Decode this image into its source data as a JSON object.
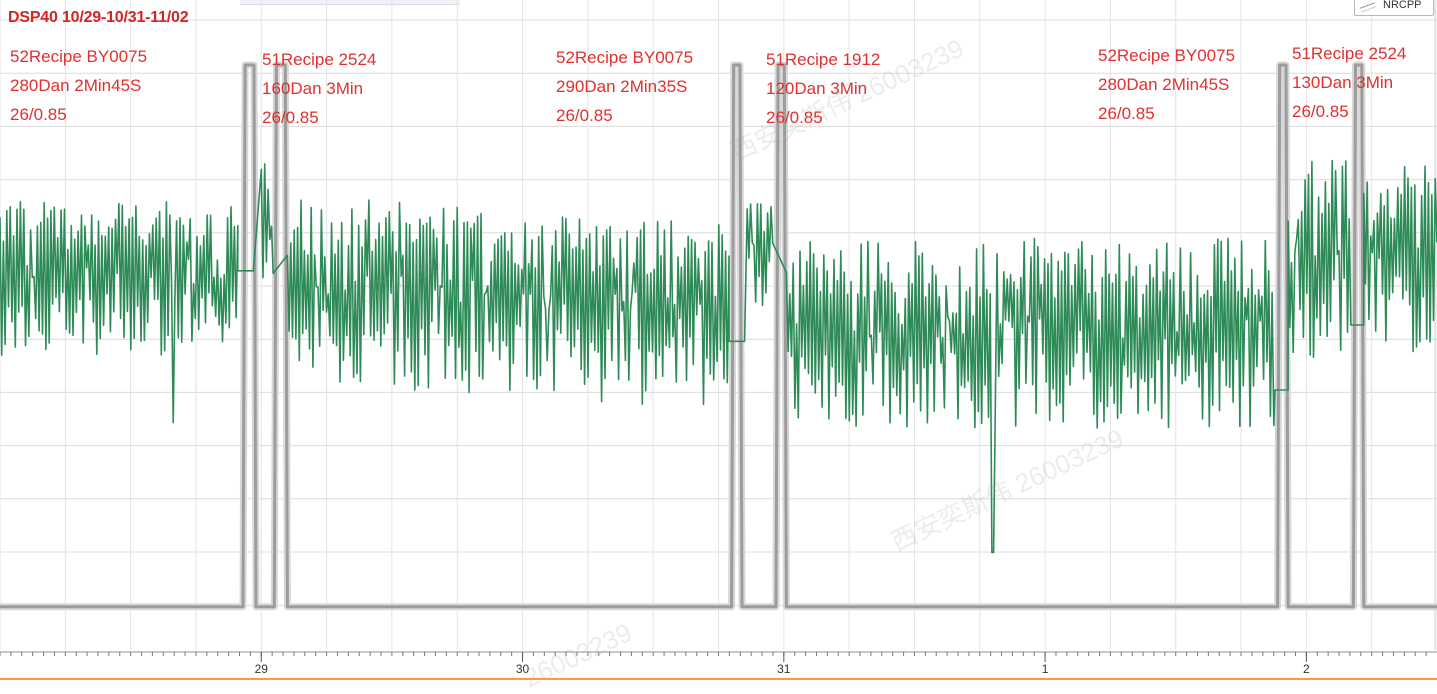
{
  "chart_data": {
    "type": "line",
    "title": "DSP40 10/29-10/31-11/02",
    "x_ticks": [
      "29",
      "30",
      "31",
      "1",
      "2"
    ],
    "legend": [
      "NRCPP"
    ],
    "series": [
      {
        "name": "NRCPP",
        "color": "#b0b0b0",
        "pulses": [
          {
            "start": 28.93,
            "end": 28.98
          },
          {
            "start": 29.05,
            "end": 29.1
          },
          {
            "start": 30.8,
            "end": 30.84
          },
          {
            "start": 30.97,
            "end": 31.01
          },
          {
            "start": 32.89,
            "end": 32.93
          },
          {
            "start": 33.18,
            "end": 33.22
          }
        ],
        "high": 1.0,
        "low": 0.0
      },
      {
        "color": "#2e8b57",
        "segments": [
          {
            "x0": 28.0,
            "x1": 28.91,
            "center": 0.62,
            "amp": 0.13,
            "min_spike": 0.34
          },
          {
            "x0": 29.0,
            "x1": 29.05,
            "center": 0.72,
            "amp": 0.1
          },
          {
            "x0": 29.1,
            "x1": 30.79,
            "center": 0.55,
            "amp": 0.16,
            "decay": 0.05
          },
          {
            "x0": 30.86,
            "x1": 30.96,
            "center": 0.65,
            "amp": 0.1
          },
          {
            "x0": 31.01,
            "x1": 32.88,
            "center": 0.52,
            "amp": 0.16,
            "min_spike": 0.1,
            "spike_x": 31.8
          },
          {
            "x0": 32.93,
            "x1": 33.17,
            "center": 0.66,
            "amp": 0.17
          },
          {
            "x0": 33.22,
            "x1": 33.5,
            "center": 0.66,
            "amp": 0.16
          }
        ],
        "flat_steps": [
          {
            "x0": 28.91,
            "x1": 28.97,
            "y": 0.62
          },
          {
            "x0": 30.79,
            "x1": 30.85,
            "y": 0.49
          },
          {
            "x0": 32.88,
            "x1": 32.93,
            "y": 0.4
          },
          {
            "x0": 33.17,
            "x1": 33.22,
            "y": 0.52
          }
        ]
      }
    ],
    "x_range": [
      28.0,
      33.5
    ],
    "y_range": [
      -0.08,
      1.12
    ],
    "grid": true
  },
  "annotations": [
    {
      "id": "ann-1",
      "lines": [
        "52Recipe BY0075",
        "280Dan 2Min45S",
        "26/0.85"
      ]
    },
    {
      "id": "ann-2",
      "lines": [
        "51Recipe   2524",
        "160Dan 3Min",
        "26/0.85"
      ]
    },
    {
      "id": "ann-3",
      "lines": [
        "52Recipe BY0075",
        "290Dan 2Min35S",
        "26/0.85"
      ]
    },
    {
      "id": "ann-4",
      "lines": [
        "51Recipe   1912",
        "120Dan 3Min",
        "26/0.85"
      ]
    },
    {
      "id": "ann-5",
      "lines": [
        "52Recipe BY0075",
        "280Dan 2Min45S",
        "26/0.85"
      ]
    },
    {
      "id": "ann-6",
      "lines": [
        "51Recipe   2524",
        "130Dan 3Min",
        "26/0.85"
      ]
    }
  ],
  "watermarks": [
    "西安奕斯伟 26003239",
    "西安奕斯伟 26003239",
    "26003239",
    "26003239"
  ]
}
